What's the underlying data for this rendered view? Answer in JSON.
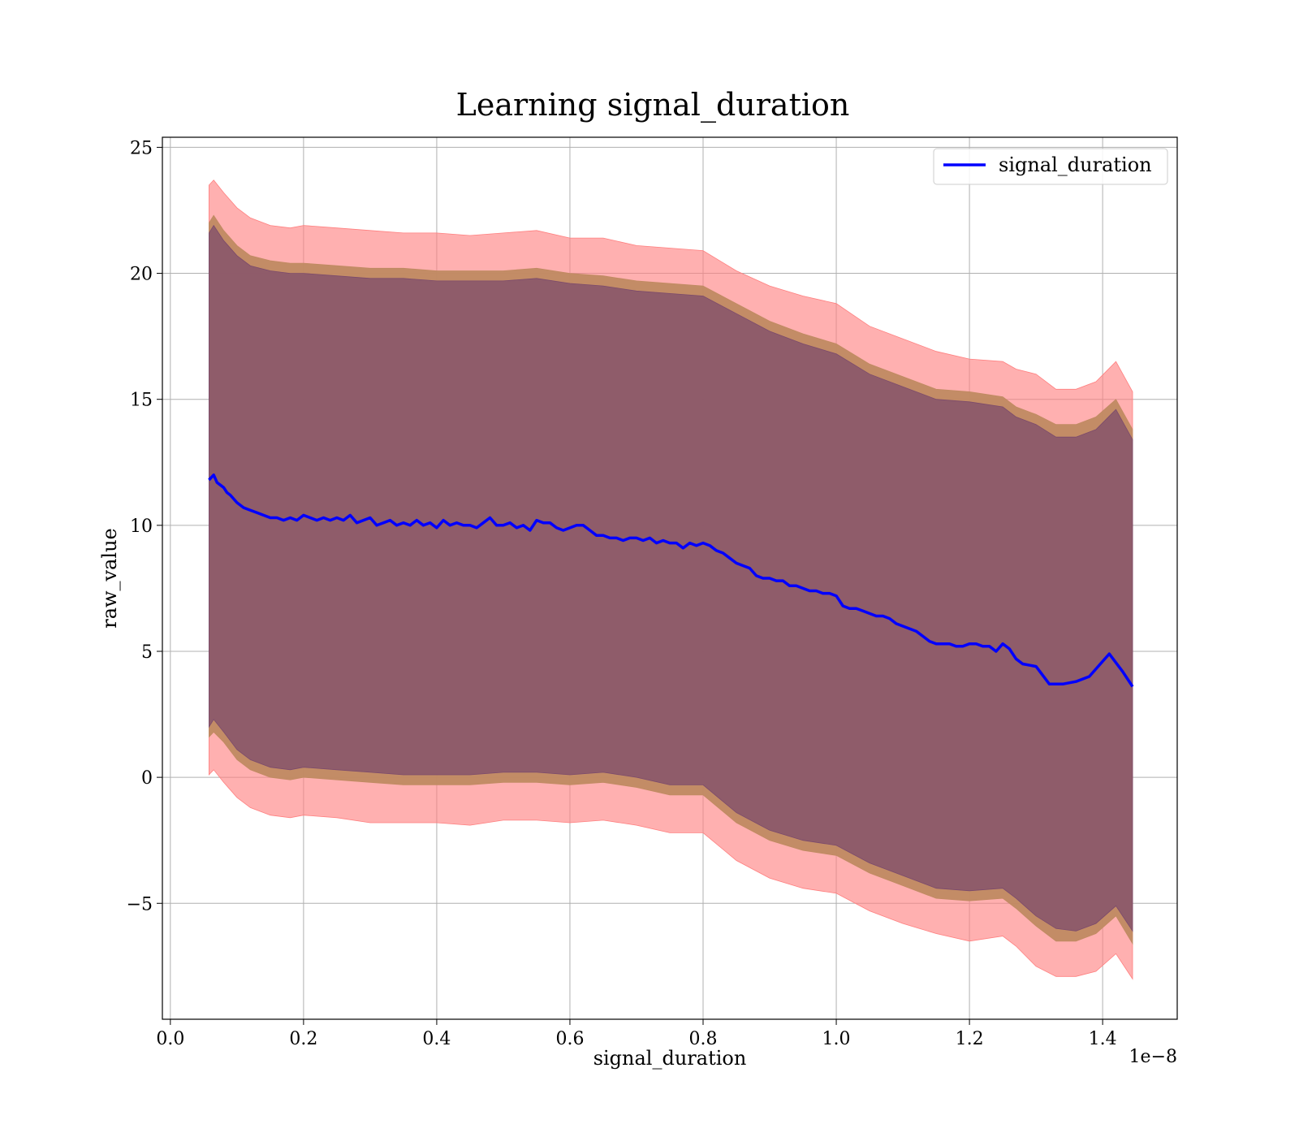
{
  "chart_data": {
    "type": "line",
    "title": "Learning signal_duration",
    "xlabel": "signal_duration",
    "ylabel": "raw_value",
    "x_offset_label": "1e−8",
    "xlim": [
      -0.012,
      1.512
    ],
    "ylim": [
      -9.6,
      25.4
    ],
    "x_ticks": [
      0.0,
      0.2,
      0.4,
      0.6,
      0.8,
      1.0,
      1.2,
      1.4
    ],
    "x_tick_labels": [
      "0.0",
      "0.2",
      "0.4",
      "0.6",
      "0.8",
      "1.0",
      "1.2",
      "1.4"
    ],
    "y_ticks": [
      -5,
      0,
      5,
      10,
      15,
      20,
      25
    ],
    "y_tick_labels": [
      "−5",
      "0",
      "5",
      "10",
      "15",
      "20",
      "25"
    ],
    "grid": true,
    "legend_position": "upper right",
    "colors": {
      "line": "#0000ff",
      "band_outer": "#ff7f7f",
      "band_middle": "#c08a62",
      "band_inner": "#7b4a6c"
    },
    "series": [
      {
        "name": "signal_duration",
        "x": [
          0.058,
          0.065,
          0.07,
          0.075,
          0.08,
          0.085,
          0.09,
          0.1,
          0.11,
          0.12,
          0.13,
          0.14,
          0.15,
          0.16,
          0.17,
          0.18,
          0.19,
          0.2,
          0.21,
          0.22,
          0.23,
          0.24,
          0.25,
          0.26,
          0.27,
          0.28,
          0.29,
          0.3,
          0.31,
          0.32,
          0.33,
          0.34,
          0.35,
          0.36,
          0.37,
          0.38,
          0.39,
          0.4,
          0.41,
          0.42,
          0.43,
          0.44,
          0.45,
          0.46,
          0.47,
          0.48,
          0.49,
          0.5,
          0.51,
          0.52,
          0.53,
          0.54,
          0.55,
          0.56,
          0.57,
          0.58,
          0.59,
          0.6,
          0.61,
          0.62,
          0.63,
          0.64,
          0.65,
          0.66,
          0.67,
          0.68,
          0.69,
          0.7,
          0.71,
          0.72,
          0.73,
          0.74,
          0.75,
          0.76,
          0.77,
          0.78,
          0.79,
          0.8,
          0.81,
          0.82,
          0.83,
          0.84,
          0.85,
          0.86,
          0.87,
          0.88,
          0.89,
          0.9,
          0.91,
          0.92,
          0.93,
          0.94,
          0.95,
          0.96,
          0.97,
          0.98,
          0.99,
          1.0,
          1.01,
          1.02,
          1.03,
          1.04,
          1.05,
          1.06,
          1.07,
          1.08,
          1.09,
          1.1,
          1.11,
          1.12,
          1.13,
          1.14,
          1.15,
          1.16,
          1.17,
          1.18,
          1.19,
          1.2,
          1.21,
          1.22,
          1.23,
          1.24,
          1.25,
          1.26,
          1.27,
          1.28,
          1.3,
          1.32,
          1.34,
          1.36,
          1.38,
          1.4,
          1.41,
          1.43,
          1.445
        ],
        "mean": [
          11.8,
          12.0,
          11.7,
          11.6,
          11.5,
          11.3,
          11.2,
          10.9,
          10.7,
          10.6,
          10.5,
          10.4,
          10.3,
          10.3,
          10.2,
          10.3,
          10.2,
          10.4,
          10.3,
          10.2,
          10.3,
          10.2,
          10.3,
          10.2,
          10.4,
          10.1,
          10.2,
          10.3,
          10.0,
          10.1,
          10.2,
          10.0,
          10.1,
          10.0,
          10.2,
          10.0,
          10.1,
          9.9,
          10.2,
          10.0,
          10.1,
          10.0,
          10.0,
          9.9,
          10.1,
          10.3,
          10.0,
          10.0,
          10.1,
          9.9,
          10.0,
          9.8,
          10.2,
          10.1,
          10.1,
          9.9,
          9.8,
          9.9,
          10.0,
          10.0,
          9.8,
          9.6,
          9.6,
          9.5,
          9.5,
          9.4,
          9.5,
          9.5,
          9.4,
          9.5,
          9.3,
          9.4,
          9.3,
          9.3,
          9.1,
          9.3,
          9.2,
          9.3,
          9.2,
          9.0,
          8.9,
          8.7,
          8.5,
          8.4,
          8.3,
          8.0,
          7.9,
          7.9,
          7.8,
          7.8,
          7.6,
          7.6,
          7.5,
          7.4,
          7.4,
          7.3,
          7.3,
          7.2,
          6.8,
          6.7,
          6.7,
          6.6,
          6.5,
          6.4,
          6.4,
          6.3,
          6.1,
          6.0,
          5.9,
          5.8,
          5.6,
          5.4,
          5.3,
          5.3,
          5.3,
          5.2,
          5.2,
          5.3,
          5.3,
          5.2,
          5.2,
          5.0,
          5.3,
          5.1,
          4.7,
          4.5,
          4.4,
          3.7,
          3.7,
          3.8,
          4.0,
          4.6,
          4.9,
          4.2,
          3.6
        ]
      }
    ],
    "bands": [
      {
        "layer": "outer",
        "x": [
          0.058,
          0.065,
          0.08,
          0.1,
          0.12,
          0.15,
          0.18,
          0.2,
          0.25,
          0.3,
          0.35,
          0.4,
          0.45,
          0.5,
          0.55,
          0.6,
          0.65,
          0.7,
          0.75,
          0.8,
          0.85,
          0.9,
          0.95,
          1.0,
          1.05,
          1.1,
          1.15,
          1.2,
          1.25,
          1.27,
          1.3,
          1.33,
          1.36,
          1.39,
          1.42,
          1.445
        ],
        "upper": [
          23.5,
          23.7,
          23.2,
          22.6,
          22.2,
          21.9,
          21.8,
          21.9,
          21.8,
          21.7,
          21.6,
          21.6,
          21.5,
          21.6,
          21.7,
          21.4,
          21.4,
          21.1,
          21.0,
          20.9,
          20.1,
          19.5,
          19.1,
          18.8,
          17.9,
          17.4,
          16.9,
          16.6,
          16.5,
          16.2,
          16.0,
          15.4,
          15.4,
          15.7,
          16.5,
          15.3
        ],
        "lower": [
          0.1,
          0.3,
          -0.2,
          -0.8,
          -1.2,
          -1.5,
          -1.6,
          -1.5,
          -1.6,
          -1.8,
          -1.8,
          -1.8,
          -1.9,
          -1.7,
          -1.7,
          -1.8,
          -1.7,
          -1.9,
          -2.2,
          -2.2,
          -3.3,
          -4.0,
          -4.4,
          -4.6,
          -5.3,
          -5.8,
          -6.2,
          -6.5,
          -6.3,
          -6.7,
          -7.5,
          -7.9,
          -7.9,
          -7.7,
          -7.0,
          -8.0
        ]
      },
      {
        "layer": "middle",
        "x": [
          0.058,
          0.065,
          0.08,
          0.1,
          0.12,
          0.15,
          0.18,
          0.2,
          0.25,
          0.3,
          0.35,
          0.4,
          0.45,
          0.5,
          0.55,
          0.6,
          0.65,
          0.7,
          0.75,
          0.8,
          0.85,
          0.9,
          0.95,
          1.0,
          1.05,
          1.1,
          1.15,
          1.2,
          1.25,
          1.27,
          1.3,
          1.33,
          1.36,
          1.39,
          1.42,
          1.445
        ],
        "upper": [
          22.0,
          22.3,
          21.7,
          21.1,
          20.7,
          20.5,
          20.4,
          20.4,
          20.3,
          20.2,
          20.2,
          20.1,
          20.1,
          20.1,
          20.2,
          20.0,
          19.9,
          19.7,
          19.6,
          19.5,
          18.8,
          18.1,
          17.6,
          17.2,
          16.4,
          15.9,
          15.4,
          15.3,
          15.1,
          14.7,
          14.4,
          14.0,
          14.0,
          14.3,
          15.0,
          13.8
        ],
        "lower": [
          1.6,
          1.8,
          1.4,
          0.7,
          0.3,
          0.0,
          -0.1,
          0.0,
          -0.1,
          -0.2,
          -0.3,
          -0.3,
          -0.3,
          -0.2,
          -0.2,
          -0.3,
          -0.2,
          -0.4,
          -0.7,
          -0.7,
          -1.8,
          -2.5,
          -2.9,
          -3.1,
          -3.8,
          -4.3,
          -4.8,
          -4.9,
          -4.8,
          -5.2,
          -5.9,
          -6.5,
          -6.5,
          -6.2,
          -5.5,
          -6.6
        ]
      },
      {
        "layer": "inner",
        "x": [
          0.058,
          0.065,
          0.08,
          0.1,
          0.12,
          0.15,
          0.18,
          0.2,
          0.25,
          0.3,
          0.35,
          0.4,
          0.45,
          0.5,
          0.55,
          0.6,
          0.65,
          0.7,
          0.75,
          0.8,
          0.85,
          0.9,
          0.95,
          1.0,
          1.05,
          1.1,
          1.15,
          1.2,
          1.25,
          1.27,
          1.3,
          1.33,
          1.36,
          1.39,
          1.42,
          1.445
        ],
        "upper": [
          21.6,
          21.9,
          21.3,
          20.7,
          20.3,
          20.1,
          20.0,
          20.0,
          19.9,
          19.8,
          19.8,
          19.7,
          19.7,
          19.7,
          19.8,
          19.6,
          19.5,
          19.3,
          19.2,
          19.1,
          18.4,
          17.7,
          17.2,
          16.8,
          16.0,
          15.5,
          15.0,
          14.9,
          14.7,
          14.3,
          14.0,
          13.5,
          13.5,
          13.8,
          14.6,
          13.4
        ],
        "lower": [
          2.0,
          2.3,
          1.8,
          1.1,
          0.7,
          0.4,
          0.3,
          0.4,
          0.3,
          0.2,
          0.1,
          0.1,
          0.1,
          0.2,
          0.2,
          0.1,
          0.2,
          0.0,
          -0.3,
          -0.3,
          -1.4,
          -2.1,
          -2.5,
          -2.7,
          -3.4,
          -3.9,
          -4.4,
          -4.5,
          -4.4,
          -4.8,
          -5.5,
          -6.0,
          -6.1,
          -5.8,
          -5.1,
          -6.1
        ]
      }
    ]
  }
}
